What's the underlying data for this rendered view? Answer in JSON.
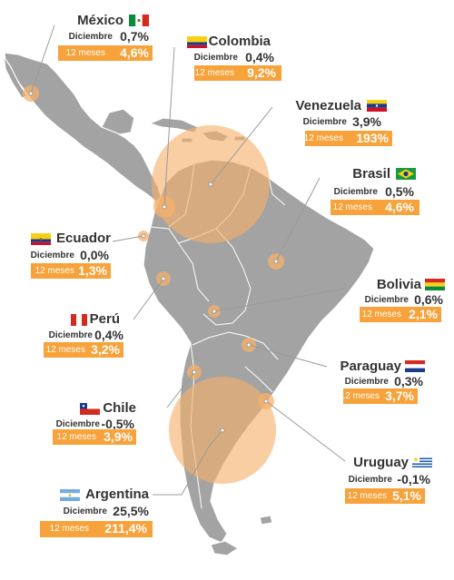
{
  "colors": {
    "land": "#a3a3a3",
    "border": "#ffffff",
    "bubble": "#f5b06a",
    "accent": "#f7a23a",
    "text": "#333333"
  },
  "countries": [
    {
      "id": "mexico",
      "name": "México",
      "dic_label": "Diciembre",
      "dic": "0,7%",
      "yr_label": "12 meses",
      "yr": "4,6%",
      "flag": "mexico-flag-icon",
      "bubble_value": 4.6
    },
    {
      "id": "colombia",
      "name": "Colombia",
      "dic_label": "Diciembre",
      "dic": "0,4%",
      "yr_label": "12 meses",
      "yr": "9,2%",
      "flag": "colombia-flag-icon",
      "bubble_value": 9.2
    },
    {
      "id": "venezuela",
      "name": "Venezuela",
      "dic_label": "Diciembre",
      "dic": "3,9%",
      "yr_label": "12 meses",
      "yr": "193%",
      "flag": "venezuela-flag-icon",
      "bubble_value": 193
    },
    {
      "id": "brasil",
      "name": "Brasil",
      "dic_label": "Diciembre",
      "dic": "0,5%",
      "yr_label": "12 meses",
      "yr": "4,6%",
      "flag": "brasil-flag-icon",
      "bubble_value": 4.6
    },
    {
      "id": "ecuador",
      "name": "Ecuador",
      "dic_label": "Diciembre",
      "dic": "0,0%",
      "yr_label": "12 meses",
      "yr": "1,3%",
      "flag": "ecuador-flag-icon",
      "bubble_value": 1.3
    },
    {
      "id": "bolivia",
      "name": "Bolivia",
      "dic_label": "Diciembre",
      "dic": "0,6%",
      "yr_label": "12 meses",
      "yr": "2,1%",
      "flag": "bolivia-flag-icon",
      "bubble_value": 2.1
    },
    {
      "id": "peru",
      "name": "Perú",
      "dic_label": "Diciembre",
      "dic": "0,4%",
      "yr_label": "12 meses",
      "yr": "3,2%",
      "flag": "peru-flag-icon",
      "bubble_value": 3.2
    },
    {
      "id": "paraguay",
      "name": "Paraguay",
      "dic_label": "Diciembre",
      "dic": "0,3%",
      "yr_label": "12 meses",
      "yr": "3,7%",
      "flag": "paraguay-flag-icon",
      "bubble_value": 3.7
    },
    {
      "id": "chile",
      "name": "Chile",
      "dic_label": "Diciembre",
      "dic": "-0,5%",
      "yr_label": "12 meses",
      "yr": "3,9%",
      "flag": "chile-flag-icon",
      "bubble_value": 3.9
    },
    {
      "id": "uruguay",
      "name": "Uruguay",
      "dic_label": "Diciembre",
      "dic": "-0,1%",
      "yr_label": "12 meses",
      "yr": "5,1%",
      "flag": "uruguay-flag-icon",
      "bubble_value": 5.1
    },
    {
      "id": "argentina",
      "name": "Argentina",
      "dic_label": "Diciembre",
      "dic": "25,5%",
      "yr_label": "12 meses",
      "yr": "211,4%",
      "flag": "argentina-flag-icon",
      "bubble_value": 211.4
    }
  ]
}
